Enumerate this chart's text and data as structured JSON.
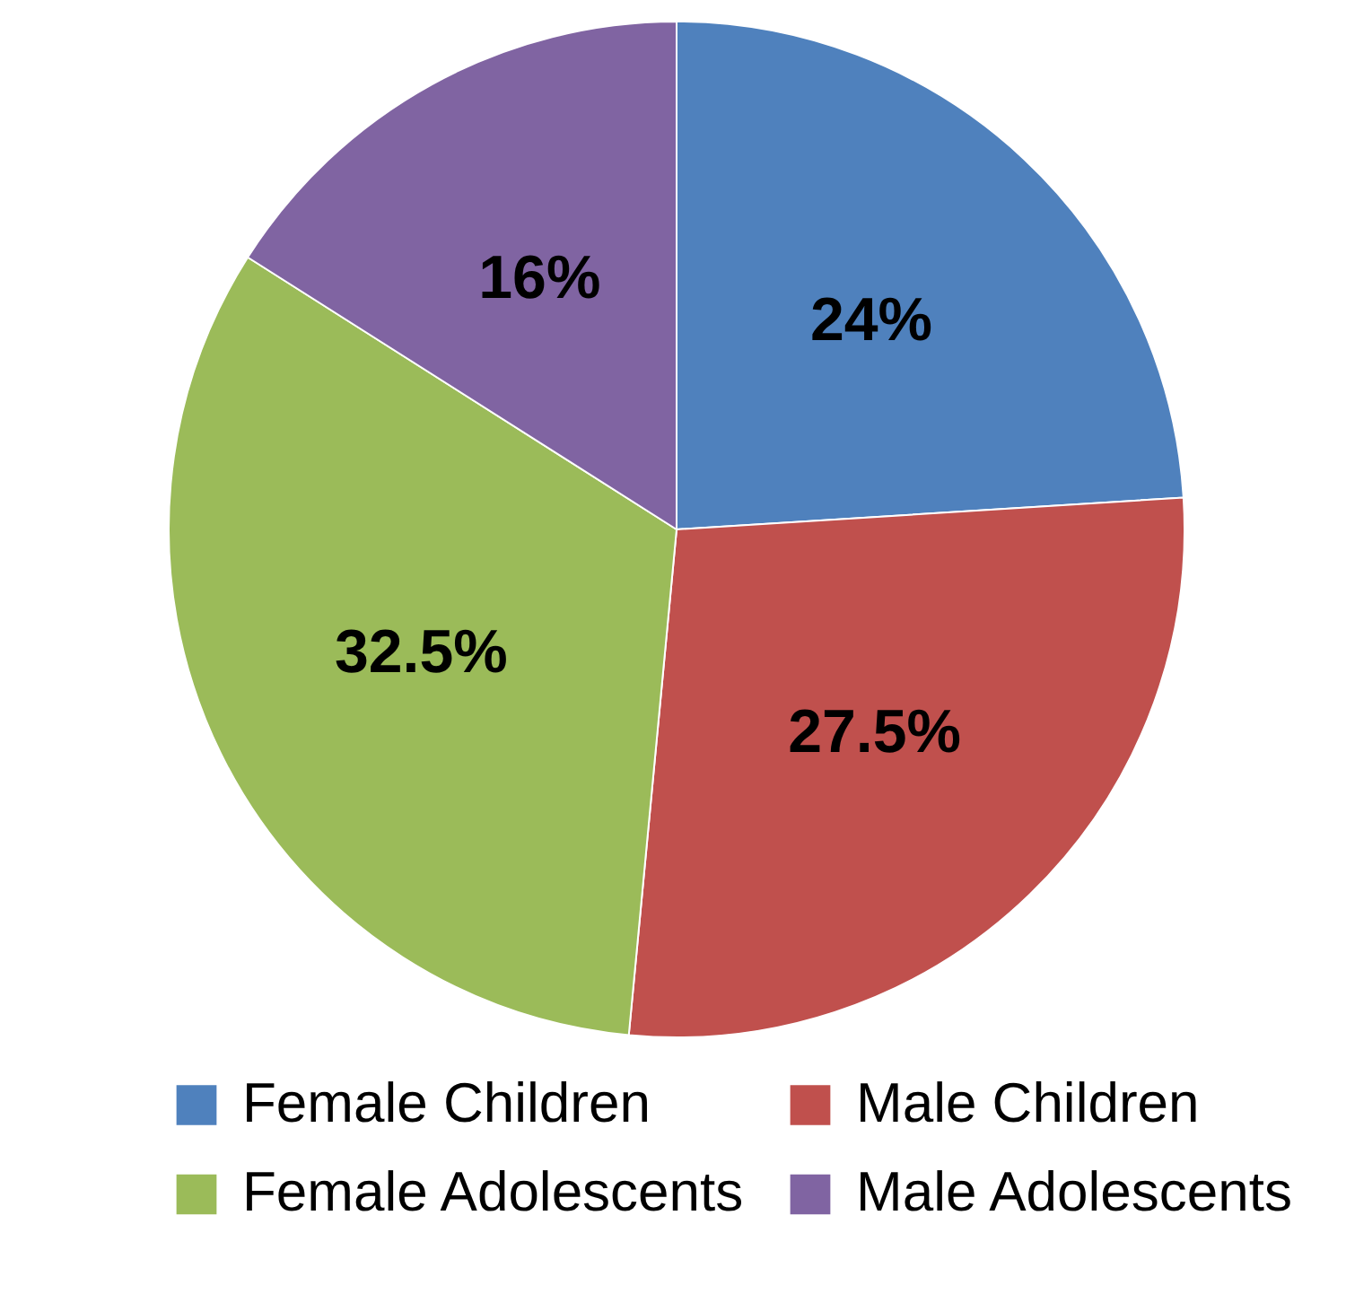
{
  "chart_data": {
    "type": "pie",
    "categories": [
      "Female Children",
      "Male Children",
      "Female Adolescents",
      "Male Adolescents"
    ],
    "values": [
      24,
      27.5,
      32.5,
      16
    ],
    "colors": [
      "#4f81bd",
      "#c0504d",
      "#9bbb59",
      "#8064a2"
    ],
    "value_labels": [
      "24%",
      "27.5%",
      "32.5%",
      "16%"
    ],
    "legend": "bottom"
  }
}
